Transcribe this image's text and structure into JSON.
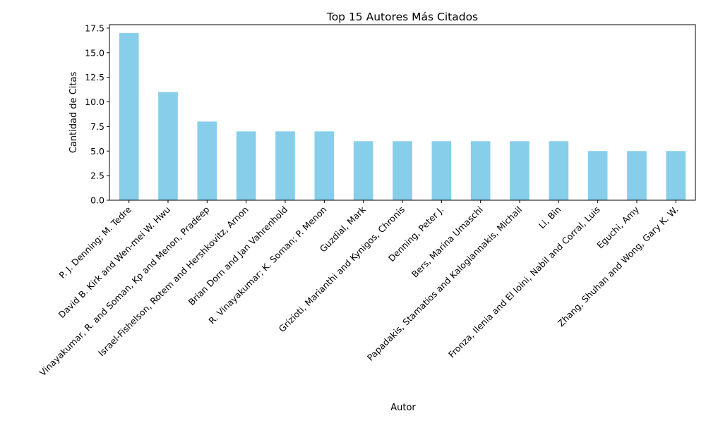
{
  "chart_data": {
    "type": "bar",
    "title": "Top 15 Autores Más Citados",
    "xlabel": "Autor",
    "ylabel": "Cantidad de Citas",
    "categories": [
      "P. J. Denning; M. Tedre",
      "David B. Kirk and Wen-mei W. Hwu",
      "Vinayakumar, R. and Soman, Kp and Menon, Pradeep",
      "Israel-Fishelson, Rotem and Hershkovitz, Arnon",
      "Brian Dorn and Jan Vahrenhold",
      "R. Vinayakumar; K. Soman; P. Menon",
      "Guzdial, Mark",
      "Grizioti, Marianthi and Kynigos, Chronis",
      "Denning, Peter J.",
      "Bers, Marina Umaschi",
      "Papadakis, Stamatios and Kalogiannakis, Michail",
      "Li, Bin",
      "Fronza, Ilenia and El Ioini, Nabil and Corral, Luis",
      "Eguchi, Amy",
      "Zhang, Shuhan and Wong, Gary K. W."
    ],
    "values": [
      17,
      11,
      8,
      7,
      7,
      7,
      6,
      6,
      6,
      6,
      6,
      6,
      5,
      5,
      5
    ],
    "ylim": [
      0,
      17.85
    ],
    "yticks": [
      "0.0",
      "2.5",
      "5.0",
      "7.5",
      "10.0",
      "12.5",
      "15.0",
      "17.5"
    ],
    "bar_color": "#87ceeb",
    "grid": false,
    "legend": "none"
  }
}
